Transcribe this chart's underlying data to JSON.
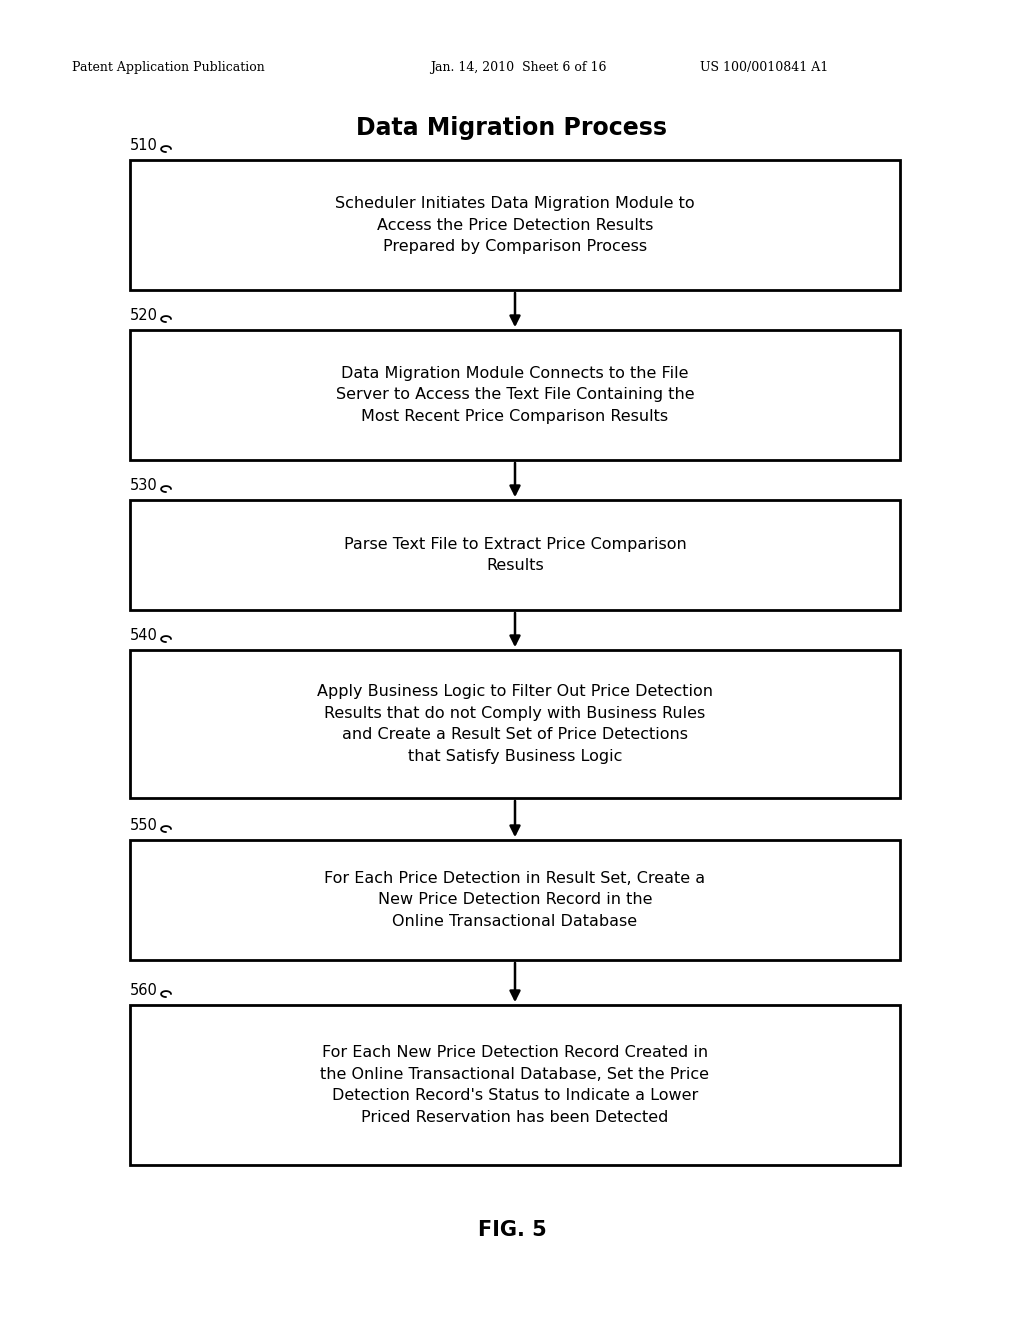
{
  "title": "Data Migration Process",
  "header_left": "Patent Application Publication",
  "header_center": "Jan. 14, 2010  Sheet 6 of 16",
  "header_right": "US 100/0010841 A1",
  "footer": "FIG. 5",
  "background_color": "#ffffff",
  "boxes": [
    {
      "id": "510",
      "label": "510",
      "text": "Scheduler Initiates Data Migration Module to\nAccess the Price Detection Results\nPrepared by Comparison Process"
    },
    {
      "id": "520",
      "label": "520",
      "text": "Data Migration Module Connects to the File\nServer to Access the Text File Containing the\nMost Recent Price Comparison Results"
    },
    {
      "id": "530",
      "label": "530",
      "text": "Parse Text File to Extract Price Comparison\nResults"
    },
    {
      "id": "540",
      "label": "540",
      "text": "Apply Business Logic to Filter Out Price Detection\nResults that do not Comply with Business Rules\nand Create a Result Set of Price Detections\nthat Satisfy Business Logic"
    },
    {
      "id": "550",
      "label": "550",
      "text": "For Each Price Detection in Result Set, Create a\nNew Price Detection Record in the\nOnline Transactional Database"
    },
    {
      "id": "560",
      "label": "560",
      "text": "For Each New Price Detection Record Created in\nthe Online Transactional Database, Set the Price\nDetection Record's Status to Indicate a Lower\nPriced Reservation has been Detected"
    }
  ]
}
